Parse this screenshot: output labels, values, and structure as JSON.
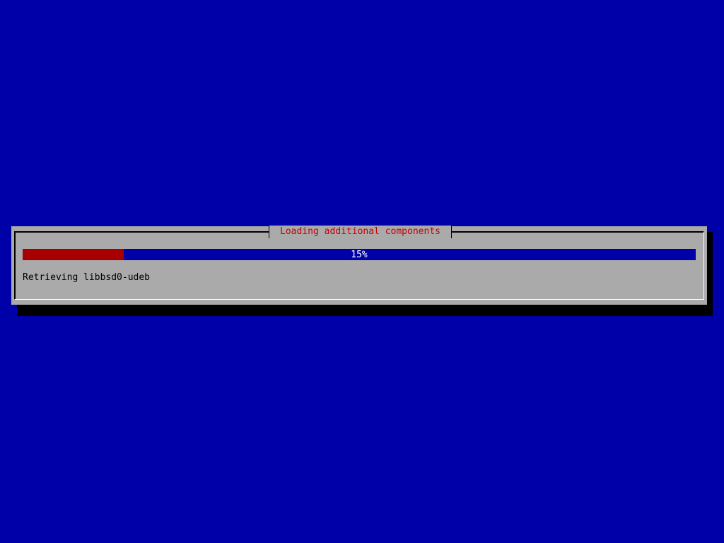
{
  "dialog": {
    "title": "Loading additional components",
    "progress": {
      "percent": 15,
      "label": "15%"
    },
    "status": "Retrieving libbsd0-udeb"
  },
  "colors": {
    "background": "#0000a8",
    "dialog": "#aaaaaa",
    "title": "#c80000",
    "progress_fill": "#a80000"
  }
}
